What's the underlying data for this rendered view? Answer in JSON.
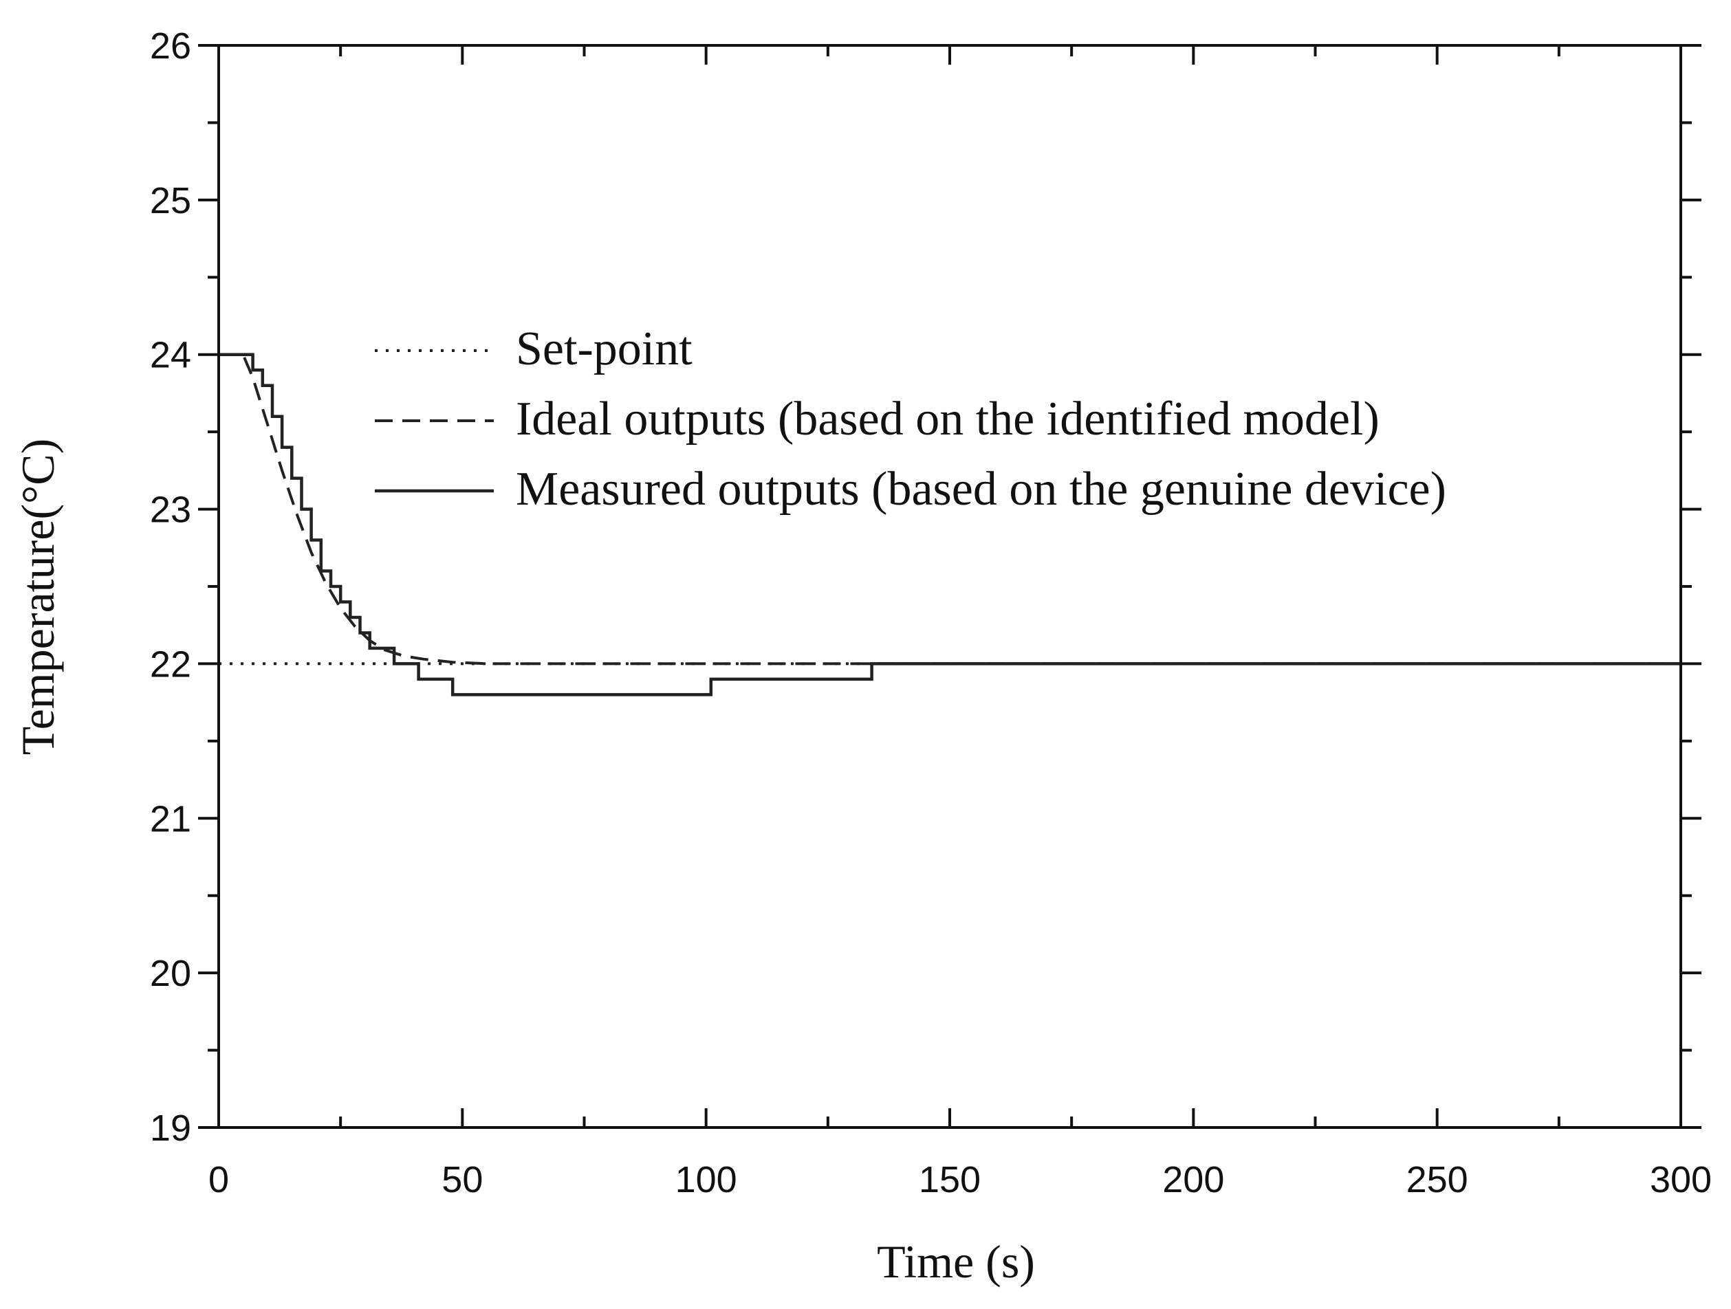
{
  "chart_data": {
    "type": "line",
    "title": "",
    "xlabel": "Time (s)",
    "ylabel": "Temperature(°C)",
    "xlim": [
      0,
      300
    ],
    "ylim": [
      19,
      26
    ],
    "x_ticks": [
      0,
      50,
      100,
      150,
      200,
      250,
      300
    ],
    "y_ticks": [
      19,
      20,
      21,
      22,
      23,
      24,
      25,
      26
    ],
    "grid": false,
    "legend_position": "upper-center",
    "series": [
      {
        "name": "Set-point",
        "style": "dotted",
        "color": "#222222",
        "x": [
          0,
          300
        ],
        "y": [
          22,
          22
        ]
      },
      {
        "name": "Ideal outputs (based on the identified model)",
        "style": "dashed",
        "color": "#222222",
        "x": [
          0,
          5,
          7,
          10,
          13,
          16,
          19,
          22,
          25,
          28,
          31,
          34,
          38,
          42,
          48,
          55,
          70,
          100,
          150,
          300
        ],
        "y": [
          24,
          24,
          23.85,
          23.55,
          23.25,
          22.97,
          22.72,
          22.52,
          22.36,
          22.24,
          22.15,
          22.09,
          22.05,
          22.03,
          22.01,
          22.0,
          22.0,
          22.0,
          22.0,
          22.0
        ]
      },
      {
        "name": "Measured outputs (based on the genuine device)",
        "style": "solid-step",
        "color": "#222222",
        "x": [
          0,
          5,
          7,
          9,
          11,
          13,
          15,
          17,
          19,
          21,
          23,
          25,
          27,
          29,
          31,
          33,
          36,
          41,
          48,
          101,
          134,
          300
        ],
        "y": [
          24,
          24,
          23.9,
          23.8,
          23.6,
          23.4,
          23.2,
          23.0,
          22.8,
          22.6,
          22.5,
          22.4,
          22.3,
          22.2,
          22.1,
          22.1,
          22.0,
          21.9,
          21.8,
          21.9,
          22.0,
          22.0
        ]
      }
    ]
  }
}
